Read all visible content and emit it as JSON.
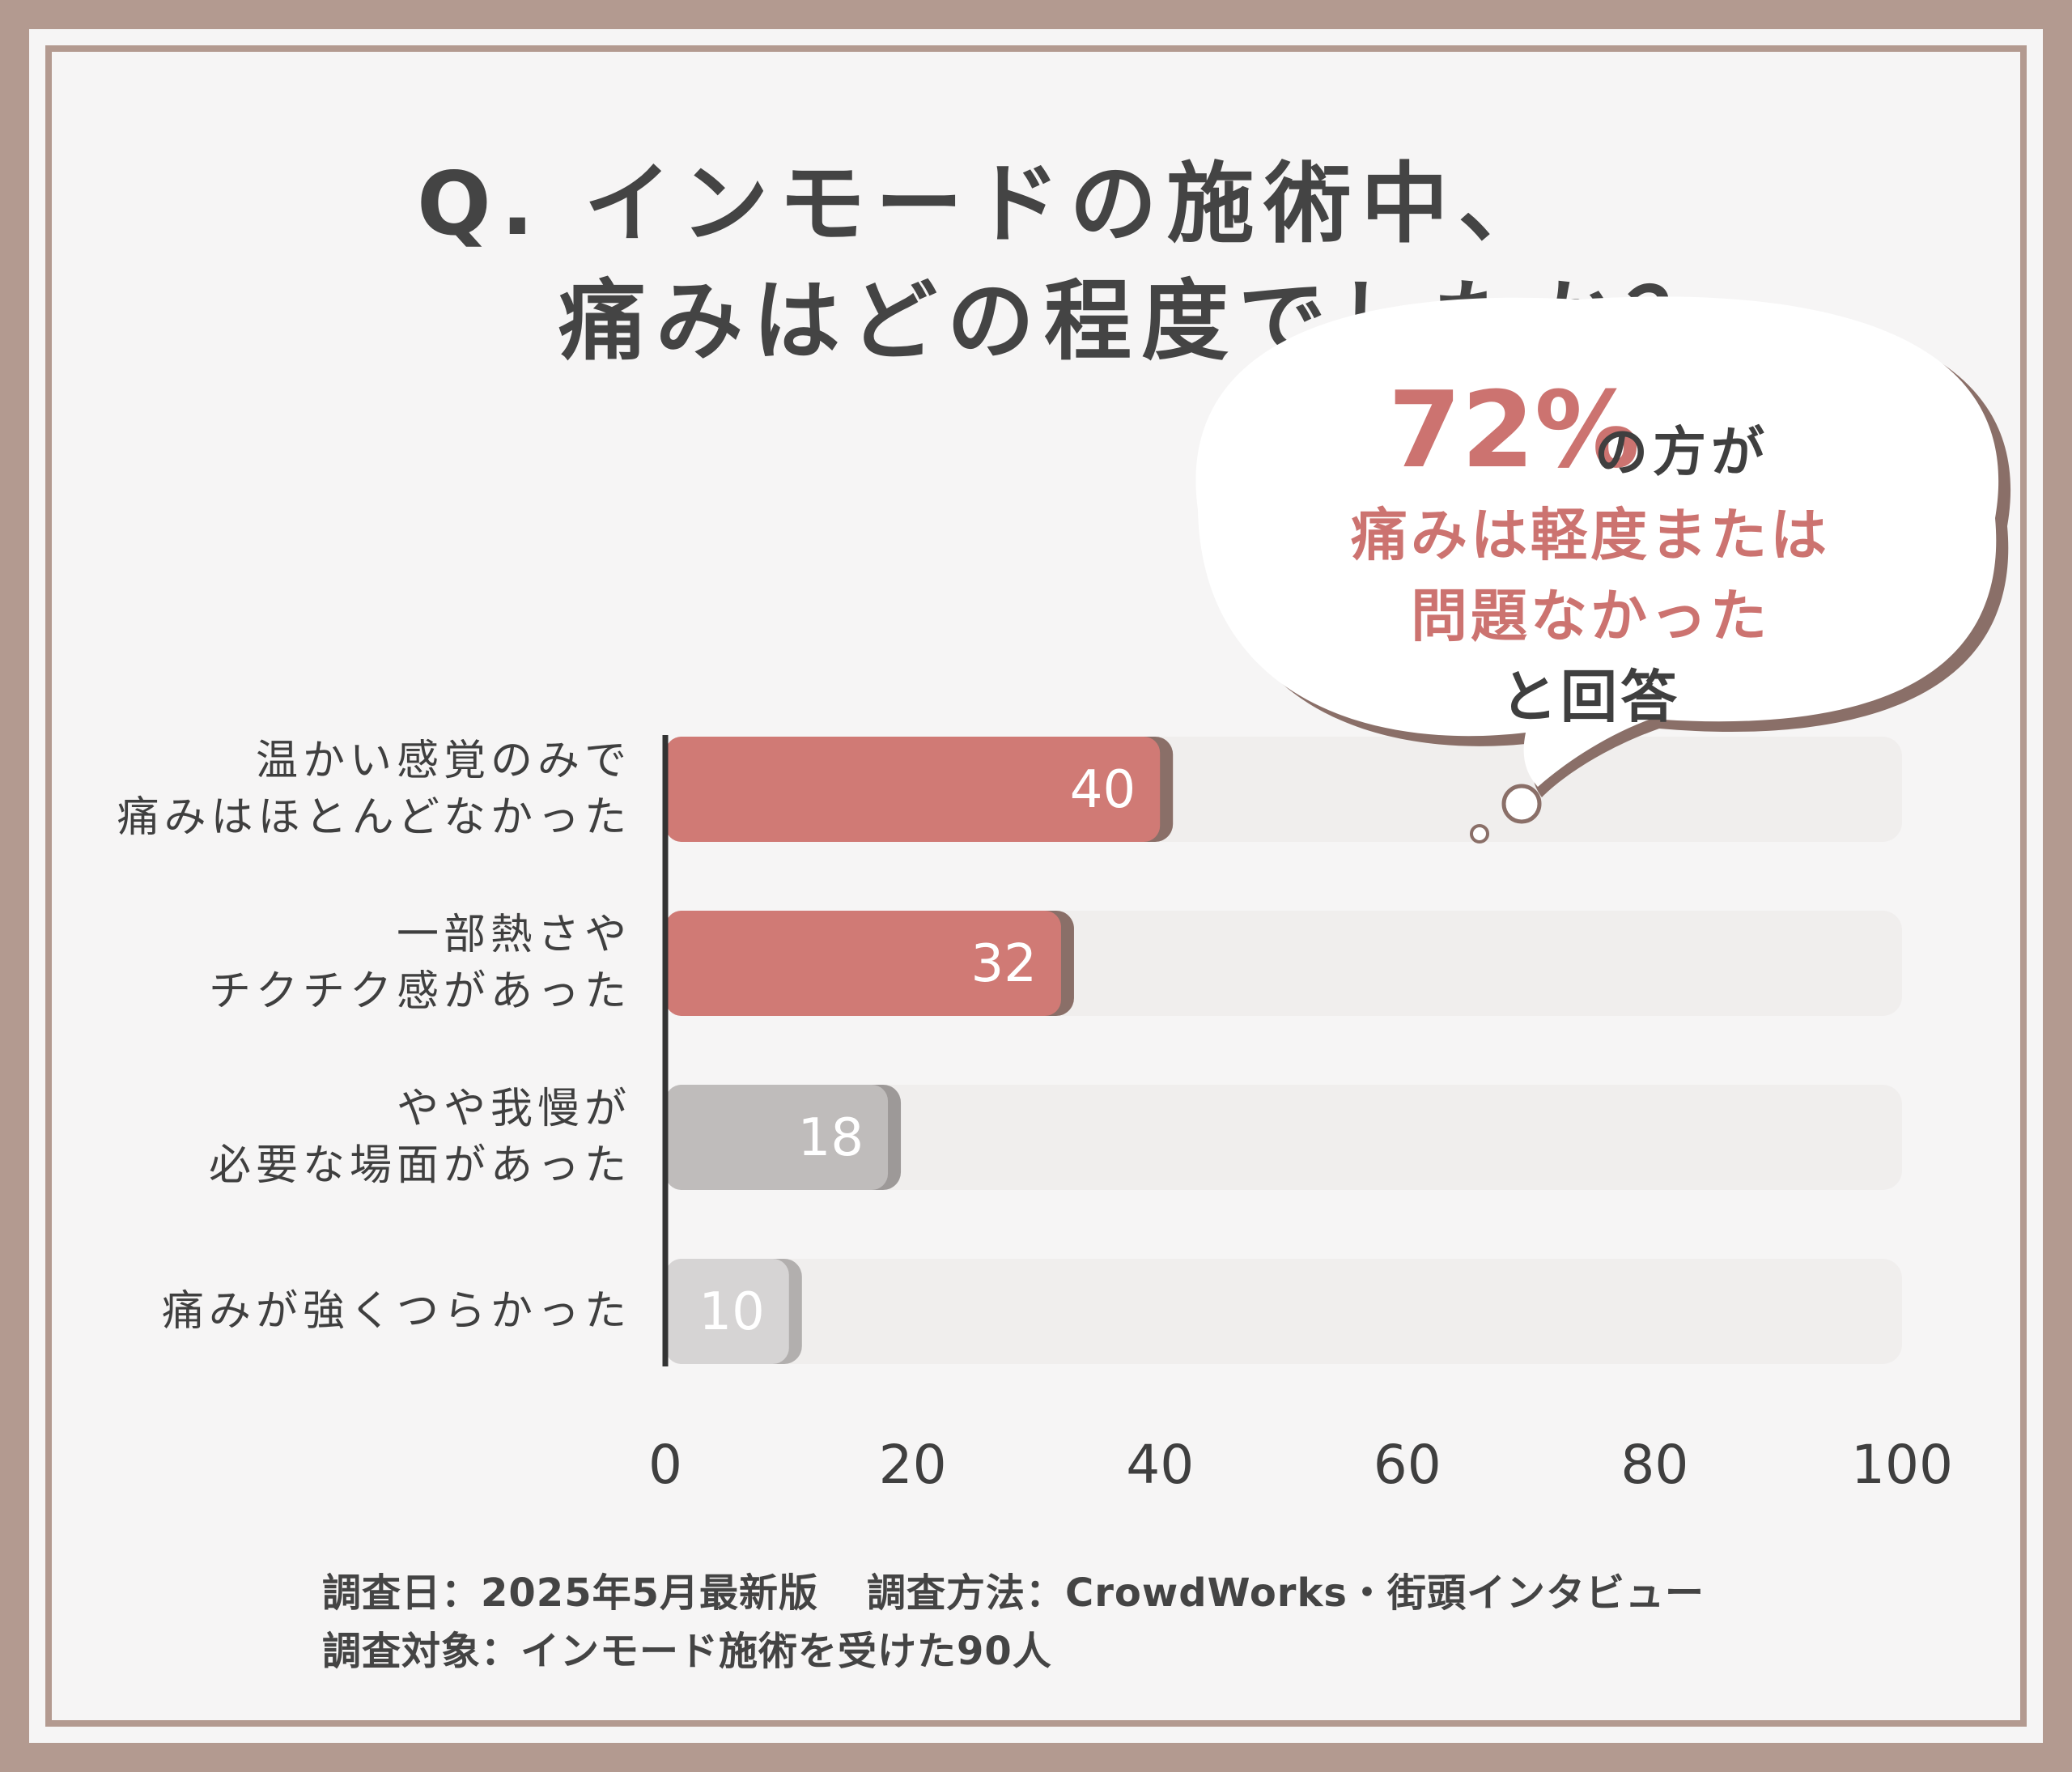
{
  "title": {
    "line1": "Q. インモードの施術中、",
    "line2": "痛みはどの程度でしたか？"
  },
  "callout": {
    "percent": "72%",
    "percent_suffix": "の方が",
    "line2": "痛みは軽度または",
    "line3": "問題なかった",
    "line4": "と回答"
  },
  "chart_data": {
    "type": "bar",
    "orientation": "horizontal",
    "categories": [
      [
        "温かい感覚のみで",
        "痛みはほとんどなかった"
      ],
      [
        "一部熱さや",
        "チクチク感があった"
      ],
      [
        "やや我慢が",
        "必要な場面があった"
      ],
      [
        "痛みが強くつらかった"
      ]
    ],
    "values": [
      40,
      32,
      18,
      10
    ],
    "data_labels": [
      "40",
      "32",
      "18",
      "10"
    ],
    "xlim": [
      0,
      100
    ],
    "xticks": [
      "0",
      "20",
      "40",
      "60",
      "80",
      "100"
    ],
    "grid": false,
    "colors": {
      "bars": [
        "#d07a75",
        "#d07a75",
        "#bfbcbb",
        "#d6d4d4"
      ],
      "bar_shadows": [
        "#8a6f68",
        "#8a6f68",
        "#9d9998",
        "#b2afae"
      ],
      "track": "#f0eeed",
      "axis": "#333333"
    }
  },
  "footer": {
    "date": "調査日：2025年5月最新版",
    "method": "調査方法：CrowdWorks・街頭インタビュー",
    "target": "調査対象：インモード施術を受けた90人"
  }
}
